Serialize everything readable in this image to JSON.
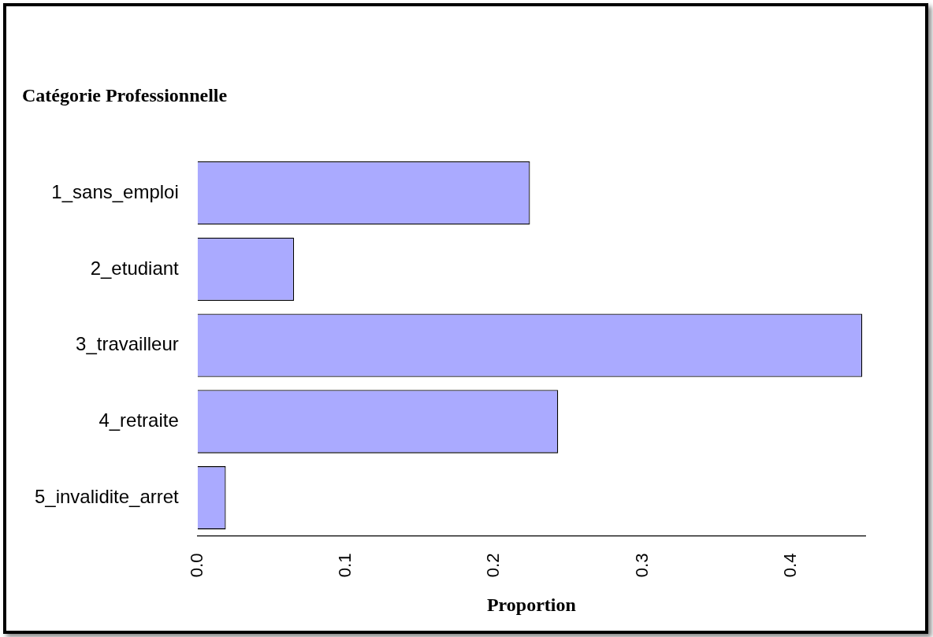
{
  "chart_data": {
    "type": "bar",
    "orientation": "horizontal",
    "title": "Catégorie Professionnelle",
    "xlabel": "Proportion",
    "categories": [
      "1_sans_emploi",
      "2_etudiant",
      "3_travailleur",
      "4_retraite",
      "5_invalidite_arret"
    ],
    "values": [
      0.224,
      0.065,
      0.448,
      0.243,
      0.019
    ],
    "color": "#aaaaff",
    "xlim": [
      0,
      0.45
    ],
    "xticks": [
      {
        "value": 0,
        "label": "0.0"
      },
      0.1,
      0.2,
      0.3,
      0.4
    ],
    "grid": false,
    "legend": false
  }
}
